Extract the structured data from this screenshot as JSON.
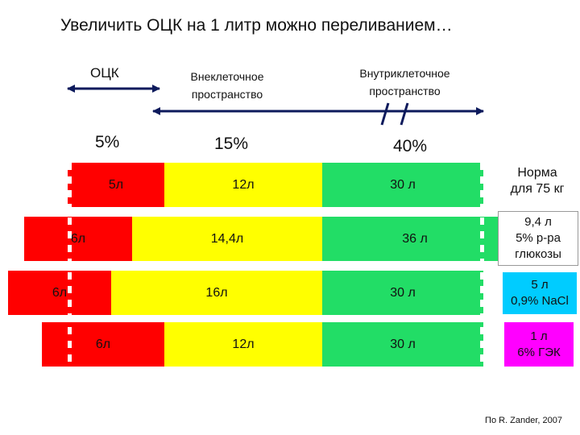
{
  "title": "Увеличить ОЦК на 1 литр можно переливанием…",
  "headers": {
    "ock": "ОЦК",
    "extracellular": [
      "Внеклеточное",
      "пространство"
    ],
    "intracellular": [
      "Внутриклеточное",
      "пространство"
    ]
  },
  "percents": {
    "ock": "5%",
    "extracellular": "15%",
    "intracellular": "40%"
  },
  "colors": {
    "red": "#ff0000",
    "yellow": "#ffff00",
    "green": "#22dd66",
    "blue": "#00ccff",
    "magenta": "#ff00ff"
  },
  "rows": [
    {
      "red": "5л",
      "yellow": "12л",
      "green": "30 л",
      "side": [
        "Норма",
        "для 75 кг"
      ]
    },
    {
      "red": "6л",
      "yellow": "14,4л",
      "green": "36 л",
      "side": [
        "9,4 л",
        "5% р-ра",
        "глюкозы"
      ]
    },
    {
      "red": "6л",
      "yellow": "16л",
      "green": "30 л",
      "side": [
        "5 л",
        "0,9% NaCl"
      ]
    },
    {
      "red": "6л",
      "yellow": "12л",
      "green": "30 л",
      "side": [
        "1 л",
        "6% ГЭК"
      ]
    }
  ],
  "credit": "По R. Zander, 2007"
}
